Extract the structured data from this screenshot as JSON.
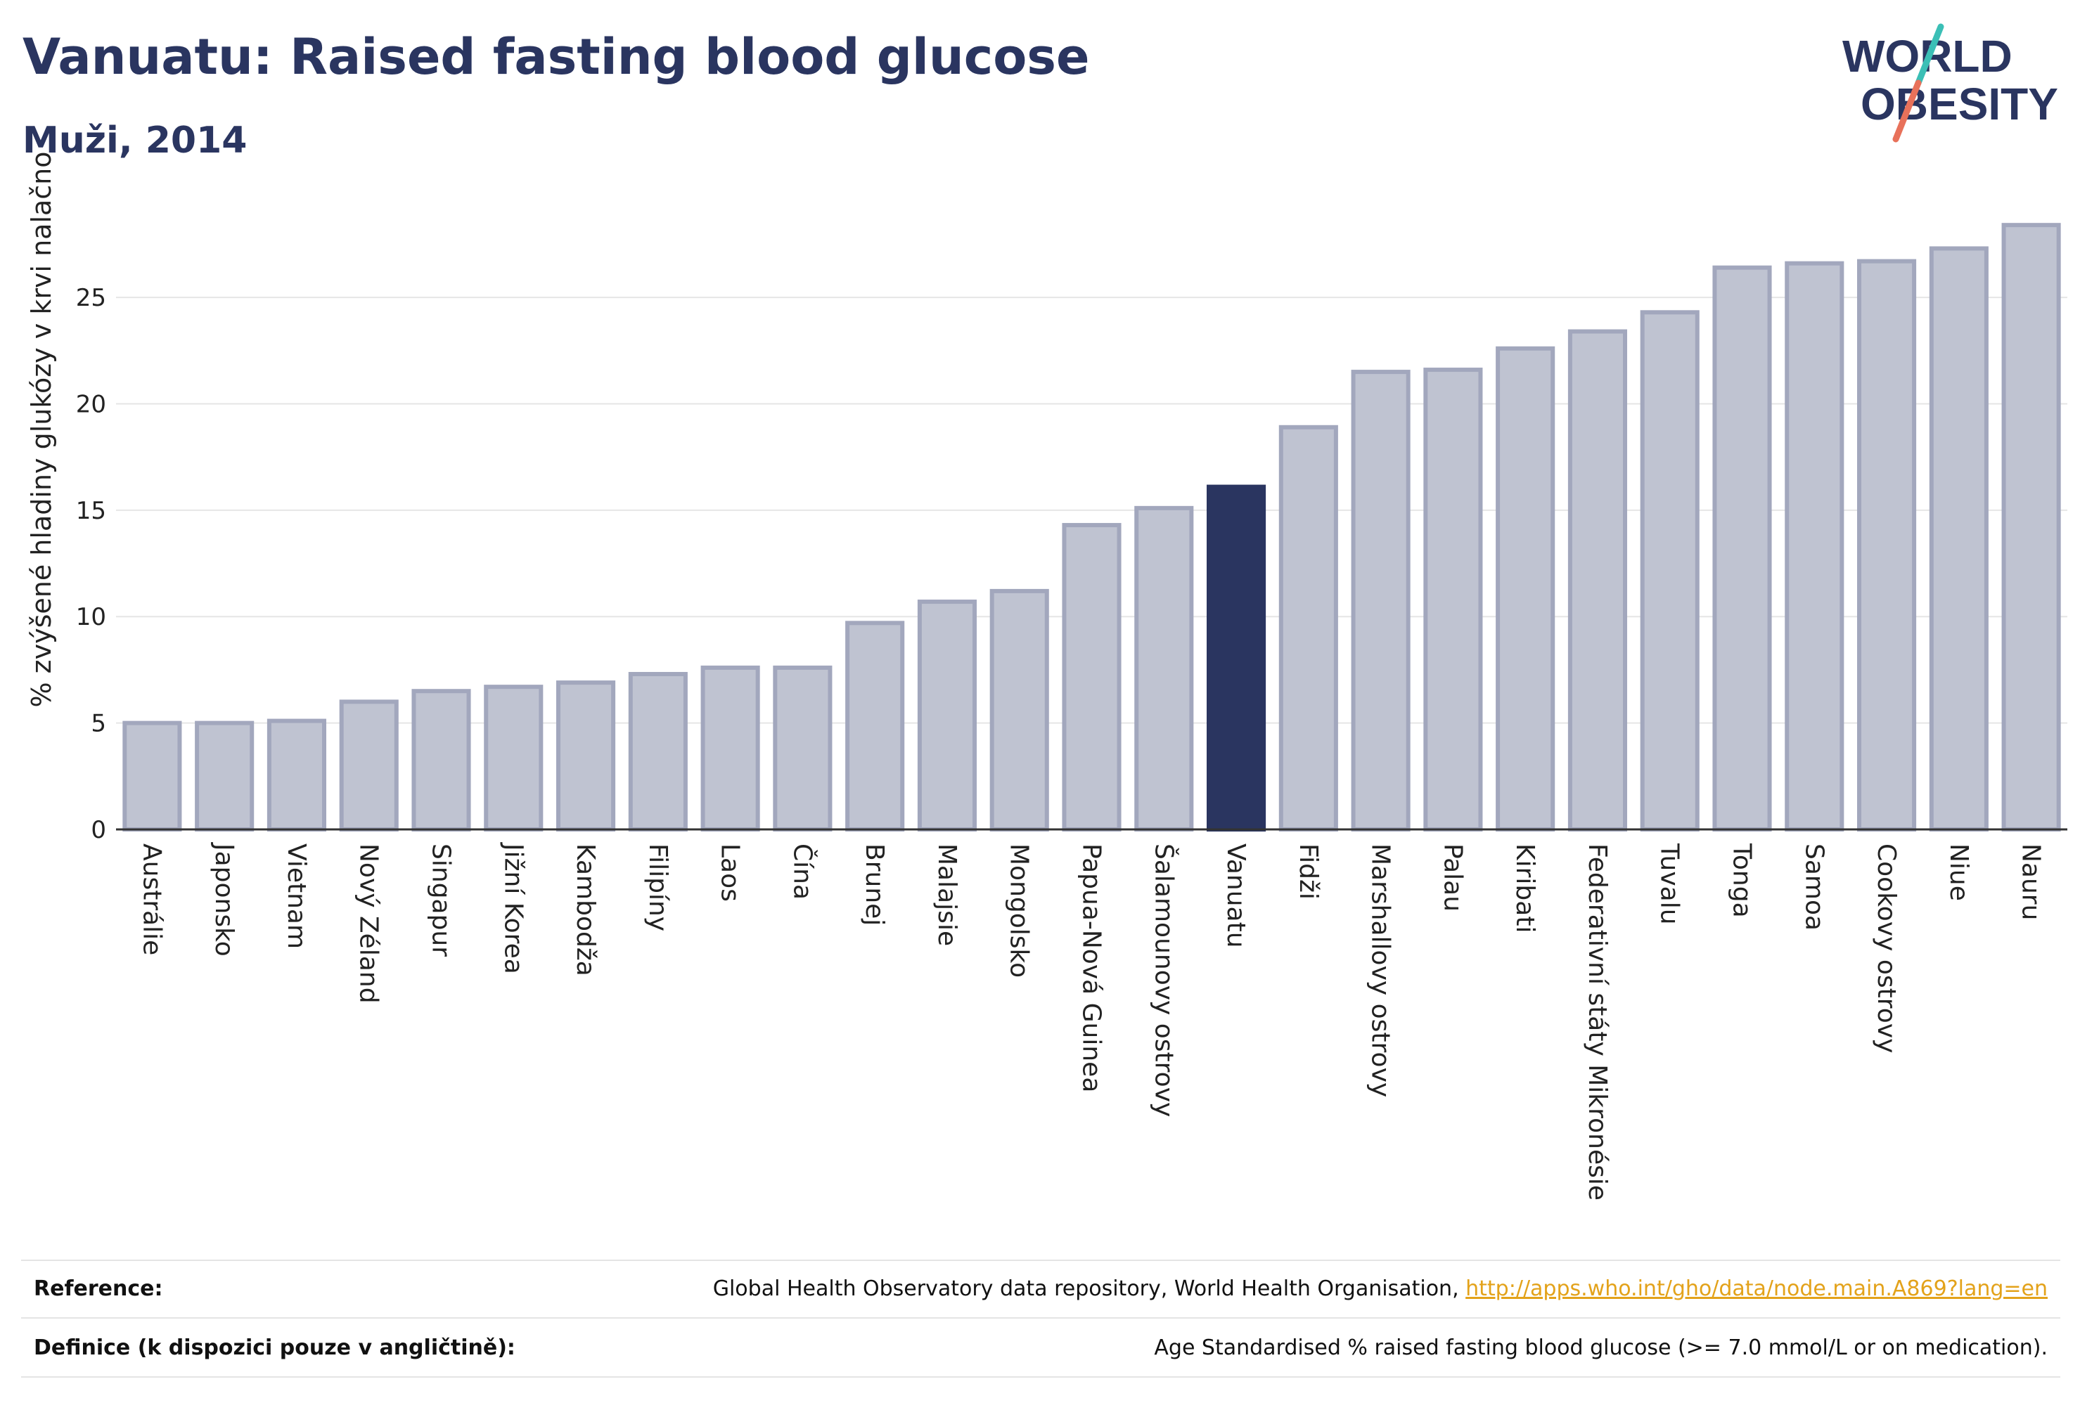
{
  "header": {
    "title": "Vanuatu: Raised fasting blood glucose",
    "subtitle": "Muži, 2014"
  },
  "logo": {
    "line1": "WORLD",
    "line2": "OBESITY"
  },
  "chart_data": {
    "type": "bar",
    "ylabel": "% zvýšené hladiny glukózy v krvi nalačno",
    "xlabel": "",
    "ylim": [
      0,
      29
    ],
    "yticks": [
      0,
      5,
      10,
      15,
      20,
      25
    ],
    "grid": true,
    "highlight": "Vanuatu",
    "colors": {
      "bar": "#bfc3d1",
      "bar_edge": "#a2a7bd",
      "highlight": "#2a3560",
      "axis": "#333333",
      "grid": "#e6e6e6"
    },
    "categories": [
      "Austrálie",
      "Japonsko",
      "Vietnam",
      "Nový Zéland",
      "Singapur",
      "Jižní Korea",
      "Kambodža",
      "Filipíny",
      "Laos",
      "Čína",
      "Brunej",
      "Malajsie",
      "Mongolsko",
      "Papua-Nová Guinea",
      "Šalamounovy ostrovy",
      "Vanuatu",
      "Fidži",
      "Marshallovy ostrovy",
      "Palau",
      "Kiribati",
      "Federativní státy Mikronésie",
      "Tuvalu",
      "Tonga",
      "Samoa",
      "Cookovy ostrovy",
      "Niue",
      "Nauru"
    ],
    "values": [
      5.0,
      5.0,
      5.1,
      6.0,
      6.5,
      6.7,
      6.9,
      7.3,
      7.6,
      7.6,
      9.7,
      10.7,
      11.2,
      14.3,
      15.1,
      16.1,
      18.9,
      21.5,
      21.6,
      22.6,
      23.4,
      24.3,
      26.4,
      26.6,
      26.7,
      27.3,
      28.4
    ]
  },
  "footer": {
    "reference_label": "Reference:",
    "reference_text": "Global Health Observatory data repository, World Health Organisation, ",
    "reference_link": "http://apps.who.int/gho/data/node.main.A869?lang=en",
    "definition_label": "Definice (k dispozici pouze v angličtině):",
    "definition_text": "Age Standardised % raised fasting blood glucose (>= 7.0 mmol/L or on medication)."
  }
}
